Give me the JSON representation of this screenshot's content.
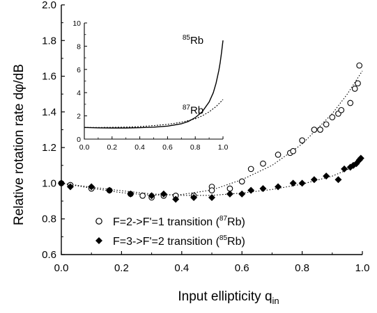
{
  "chart_data": [
    {
      "type": "scatter",
      "xlabel": "Input ellipticity q",
      "xlabel_sub": "in",
      "ylabel": "Relative rotation rate  dφ/dB",
      "xlim": [
        0.0,
        1.0
      ],
      "ylim": [
        0.6,
        2.0
      ],
      "xticks": [
        "0.0",
        "0.2",
        "0.4",
        "0.6",
        "0.8",
        "1.0"
      ],
      "yticks": [
        "0.6",
        "0.8",
        "1.0",
        "1.2",
        "1.4",
        "1.6",
        "1.8",
        "2.0"
      ],
      "legend_position": "bottom-left",
      "series": [
        {
          "name": "F=2->F'=1 transition (87Rb)",
          "legend_parts": [
            "F=2->F'=1 transition (",
            "87",
            "Rb)"
          ],
          "marker": "open-circle",
          "x": [
            0.0,
            0.03,
            0.1,
            0.16,
            0.23,
            0.27,
            0.3,
            0.34,
            0.38,
            0.44,
            0.5,
            0.5,
            0.56,
            0.6,
            0.63,
            0.67,
            0.72,
            0.76,
            0.77,
            0.8,
            0.84,
            0.86,
            0.88,
            0.9,
            0.92,
            0.93,
            0.96,
            0.975,
            0.985,
            0.99
          ],
          "y": [
            1.0,
            0.99,
            0.97,
            0.96,
            0.94,
            0.93,
            0.92,
            0.93,
            0.93,
            0.93,
            0.98,
            0.96,
            0.97,
            1.01,
            1.08,
            1.11,
            1.16,
            1.17,
            1.18,
            1.24,
            1.3,
            1.3,
            1.33,
            1.37,
            1.39,
            1.41,
            1.45,
            1.53,
            1.56,
            1.66
          ]
        },
        {
          "name": "F=3->F'=2 transition (85Rb)",
          "legend_parts": [
            "F=3->F'=2 transition (",
            "85",
            "Rb)"
          ],
          "marker": "filled-diamond",
          "x": [
            0.0,
            0.03,
            0.1,
            0.16,
            0.23,
            0.3,
            0.34,
            0.38,
            0.44,
            0.5,
            0.56,
            0.6,
            0.63,
            0.67,
            0.72,
            0.77,
            0.8,
            0.84,
            0.88,
            0.92,
            0.94,
            0.96,
            0.97,
            0.98,
            0.99,
            0.995
          ],
          "y": [
            1.0,
            0.98,
            0.98,
            0.96,
            0.94,
            0.93,
            0.94,
            0.91,
            0.92,
            0.92,
            0.94,
            0.94,
            0.96,
            0.97,
            0.98,
            1.0,
            1.0,
            1.02,
            1.04,
            1.02,
            1.08,
            1.09,
            1.1,
            1.11,
            1.13,
            1.14
          ]
        }
      ],
      "fit_curves": [
        {
          "line": "dotted",
          "x": [
            0.0,
            0.1,
            0.2,
            0.3,
            0.4,
            0.5,
            0.6,
            0.7,
            0.8,
            0.9,
            0.95,
            1.0
          ],
          "y": [
            1.0,
            0.972,
            0.947,
            0.933,
            0.937,
            0.962,
            1.02,
            1.1,
            1.22,
            1.39,
            1.5,
            1.63
          ]
        },
        {
          "line": "dotted",
          "x": [
            0.0,
            0.1,
            0.2,
            0.3,
            0.4,
            0.5,
            0.6,
            0.7,
            0.8,
            0.9,
            0.95,
            1.0
          ],
          "y": [
            1.0,
            0.978,
            0.958,
            0.94,
            0.932,
            0.932,
            0.945,
            0.965,
            0.995,
            1.04,
            1.075,
            1.13
          ]
        }
      ]
    },
    {
      "type": "line",
      "role": "inset",
      "xlim": [
        0.0,
        1.0
      ],
      "ylim": [
        0,
        10
      ],
      "xticks": [
        "0.0",
        "0.2",
        "0.4",
        "0.6",
        "0.8",
        "1.0"
      ],
      "yticks": [
        "0",
        "2",
        "4",
        "6",
        "8",
        "10"
      ],
      "series": [
        {
          "line": "solid",
          "label_parts": [
            "85",
            "Rb"
          ],
          "label_at": [
            0.86,
            8.2
          ],
          "x": [
            0.0,
            0.1,
            0.2,
            0.3,
            0.4,
            0.5,
            0.6,
            0.7,
            0.75,
            0.8,
            0.85,
            0.9,
            0.93,
            0.95,
            0.97,
            0.98,
            0.99,
            1.0
          ],
          "y": [
            1.0,
            0.97,
            0.96,
            0.96,
            0.98,
            1.03,
            1.12,
            1.32,
            1.52,
            1.85,
            2.35,
            3.2,
            4.0,
            4.8,
            5.9,
            6.6,
            7.5,
            8.5
          ]
        },
        {
          "line": "dotted",
          "label_parts": [
            "87",
            "Rb"
          ],
          "label_at": [
            0.86,
            2.2
          ],
          "x": [
            0.0,
            0.1,
            0.2,
            0.3,
            0.4,
            0.5,
            0.6,
            0.7,
            0.8,
            0.85,
            0.9,
            0.95,
            1.0
          ],
          "y": [
            1.0,
            1.0,
            1.01,
            1.03,
            1.08,
            1.16,
            1.27,
            1.45,
            1.75,
            2.0,
            2.35,
            2.8,
            3.4
          ]
        }
      ]
    }
  ]
}
